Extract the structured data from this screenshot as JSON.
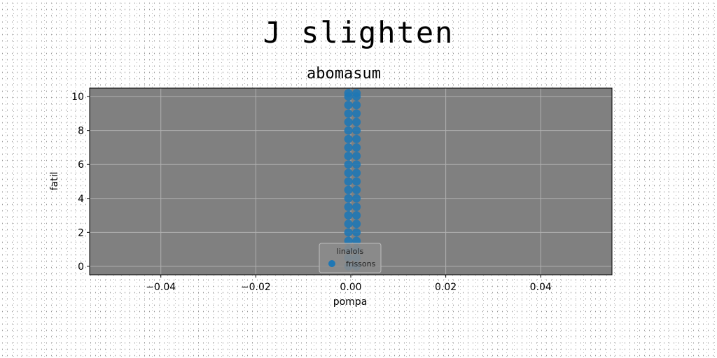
{
  "suptitle": "J slighten",
  "chart_data": {
    "type": "scatter",
    "title": "abomasum",
    "xlabel": "pompa",
    "ylabel": "fatil",
    "xlim": [
      -0.055,
      0.055
    ],
    "ylim": [
      -0.5,
      10.5
    ],
    "xticks": [
      -0.04,
      -0.02,
      0.0,
      0.02,
      0.04
    ],
    "xtick_labels": [
      "−0.04",
      "−0.02",
      "0.00",
      "0.02",
      "0.04"
    ],
    "yticks": [
      0,
      2,
      4,
      6,
      8,
      10
    ],
    "ytick_labels": [
      "0",
      "2",
      "4",
      "6",
      "8",
      "10"
    ],
    "grid": true,
    "background": "#808080",
    "legend": {
      "title": "linalols",
      "placement": "lower center",
      "entries": [
        "frissons"
      ]
    },
    "series": [
      {
        "name": "frissons",
        "color": "#1f77b4",
        "points": [
          [
            -0.0005,
            0
          ],
          [
            -0.0005,
            0.5
          ],
          [
            -0.0005,
            1
          ],
          [
            -0.0005,
            1.5
          ],
          [
            -0.0005,
            2
          ],
          [
            -0.0005,
            2.5
          ],
          [
            -0.0005,
            3
          ],
          [
            -0.0005,
            3.5
          ],
          [
            -0.0005,
            4
          ],
          [
            -0.0005,
            4.5
          ],
          [
            -0.0005,
            5
          ],
          [
            -0.0005,
            5.5
          ],
          [
            -0.0005,
            6
          ],
          [
            -0.0005,
            6.5
          ],
          [
            -0.0005,
            7
          ],
          [
            -0.0005,
            7.5
          ],
          [
            -0.0005,
            8
          ],
          [
            -0.0005,
            8.5
          ],
          [
            -0.0005,
            9
          ],
          [
            -0.0005,
            9.5
          ],
          [
            -0.0005,
            10
          ],
          [
            -0.0005,
            10.2
          ],
          [
            0.0012,
            0
          ],
          [
            0.0012,
            0.5
          ],
          [
            0.0012,
            1
          ],
          [
            0.0012,
            1.5
          ],
          [
            0.0012,
            2
          ],
          [
            0.0012,
            2.5
          ],
          [
            0.0012,
            3
          ],
          [
            0.0012,
            3.5
          ],
          [
            0.0012,
            4
          ],
          [
            0.0012,
            4.5
          ],
          [
            0.0012,
            5
          ],
          [
            0.0012,
            5.5
          ],
          [
            0.0012,
            6
          ],
          [
            0.0012,
            6.5
          ],
          [
            0.0012,
            7
          ],
          [
            0.0012,
            7.5
          ],
          [
            0.0012,
            8
          ],
          [
            0.0012,
            8.5
          ],
          [
            0.0012,
            9
          ],
          [
            0.0012,
            9.5
          ],
          [
            0.0012,
            10
          ],
          [
            0.0012,
            10.2
          ]
        ]
      }
    ]
  }
}
